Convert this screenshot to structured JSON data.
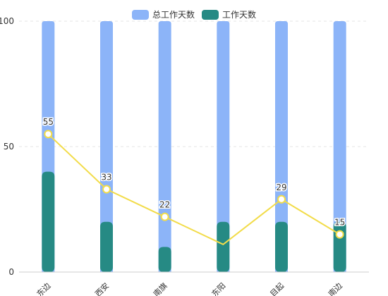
{
  "chart_data": {
    "type": "bar",
    "categories": [
      "东边",
      "西安",
      "南旗",
      "东阳",
      "目起",
      "南边"
    ],
    "series": [
      {
        "name": "总工作天数",
        "type": "bar",
        "color": "#8cb4f8",
        "values": [
          100,
          100,
          100,
          100,
          100,
          100
        ]
      },
      {
        "name": "工作天数",
        "type": "bar",
        "color": "#268a84",
        "values": [
          40,
          20,
          10,
          20,
          20,
          20
        ]
      },
      {
        "name": "",
        "type": "line",
        "color": "#f2dc4a",
        "values": [
          55,
          33,
          22,
          11,
          29,
          15
        ]
      }
    ],
    "point_labels": [
      "55",
      "33",
      "22",
      "",
      "29",
      "15"
    ],
    "ylim": [
      0,
      100
    ],
    "yticks": [
      0,
      50,
      100
    ],
    "ytick_labels": [
      "0",
      "50",
      "100"
    ],
    "grid": true,
    "legend": {
      "position": "top-center",
      "items": [
        "总工作天数",
        "工作天数"
      ]
    },
    "xlabel": "",
    "ylabel": "",
    "title": ""
  }
}
